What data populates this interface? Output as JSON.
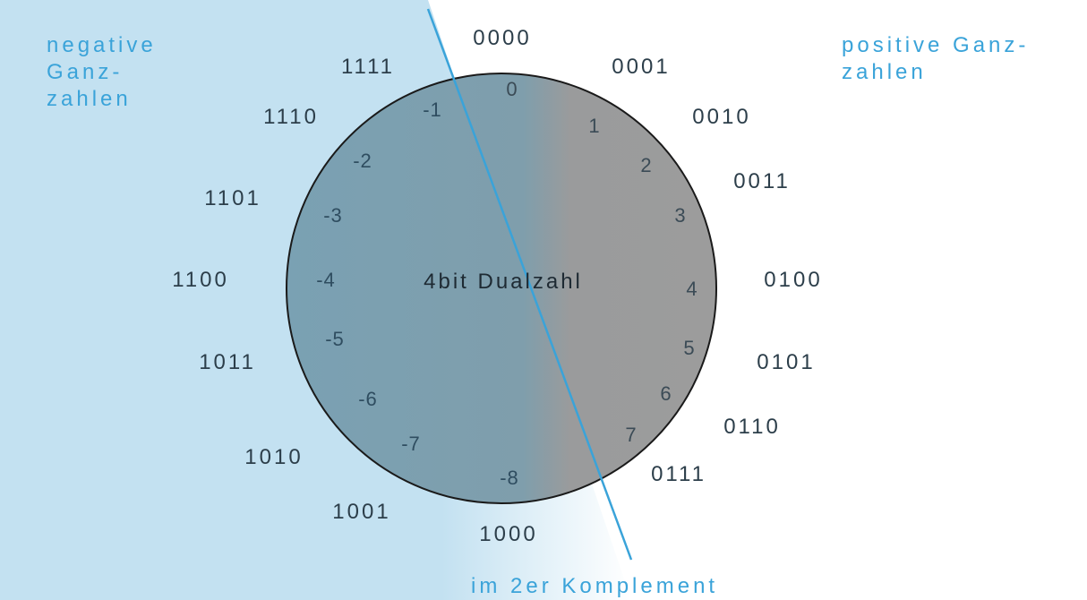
{
  "center_label": "4bit Dualzahl",
  "negative_caption": [
    "negative",
    "Ganz-",
    "zahlen"
  ],
  "positive_caption": [
    "positive Ganz-",
    "zahlen"
  ],
  "bottom_caption": "im 2er Komplement",
  "binary_codes": [
    "0000",
    "0001",
    "0010",
    "0011",
    "0100",
    "0101",
    "0110",
    "0111",
    "1000",
    "1001",
    "1010",
    "1011",
    "1100",
    "1101",
    "1110",
    "1111"
  ],
  "decimal_values": [
    "0",
    "1",
    "2",
    "3",
    "4",
    "5",
    "6",
    "7",
    "-8",
    "-7",
    "-6",
    "-5",
    "-4",
    "-3",
    "-2",
    "-1"
  ],
  "colors": {
    "negative_region": "#c3e1f1",
    "circle_positive": "#9c9c9c",
    "circle_negative": "#7aa1b3",
    "divider_line": "#3aa3d9",
    "caption": "#3aa3d9"
  }
}
